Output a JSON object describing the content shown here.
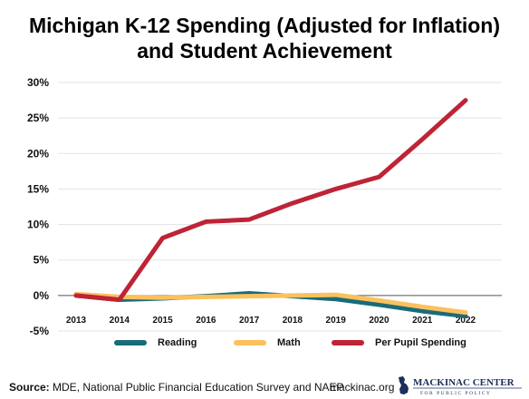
{
  "title_line1": "Michigan K-12 Spending (Adjusted for Inflation)",
  "title_line2": "and Student Achievement",
  "chart_data": {
    "type": "line",
    "title": "Michigan K-12 Spending (Adjusted for Inflation) and Student Achievement",
    "x": [
      "2013",
      "2014",
      "2015",
      "2016",
      "2017",
      "2018",
      "2019",
      "2020",
      "2021",
      "2022"
    ],
    "y_ticks": [
      "-5%",
      "0%",
      "5%",
      "10%",
      "15%",
      "20%",
      "25%",
      "30%"
    ],
    "y_tick_values": [
      -5,
      0,
      5,
      10,
      15,
      20,
      25,
      30
    ],
    "ylim": [
      -5,
      30
    ],
    "grid": true,
    "legend_position": "bottom",
    "series": [
      {
        "name": "Reading",
        "color": "#1a6b7a",
        "values": [
          0.0,
          -0.6,
          -0.4,
          -0.1,
          0.3,
          -0.1,
          -0.5,
          -1.3,
          -2.2,
          -2.9
        ]
      },
      {
        "name": "Math",
        "color": "#fbc15e",
        "values": [
          0.2,
          -0.2,
          -0.3,
          -0.2,
          -0.1,
          0.0,
          0.1,
          -0.7,
          -1.6,
          -2.4
        ]
      },
      {
        "name": "Per Pupil Spending",
        "color": "#be2436",
        "values": [
          0.0,
          -0.6,
          8.1,
          10.4,
          10.7,
          13.0,
          15.0,
          16.7,
          22.0,
          27.5
        ]
      }
    ]
  },
  "footer": {
    "source_label": "Source:",
    "source_text": " MDE, National Public Financial Education Survey and NAEP",
    "site": "mackinac.org",
    "logo_text": "MACKINAC CENTER",
    "logo_subtext": "FOR PUBLIC POLICY"
  }
}
